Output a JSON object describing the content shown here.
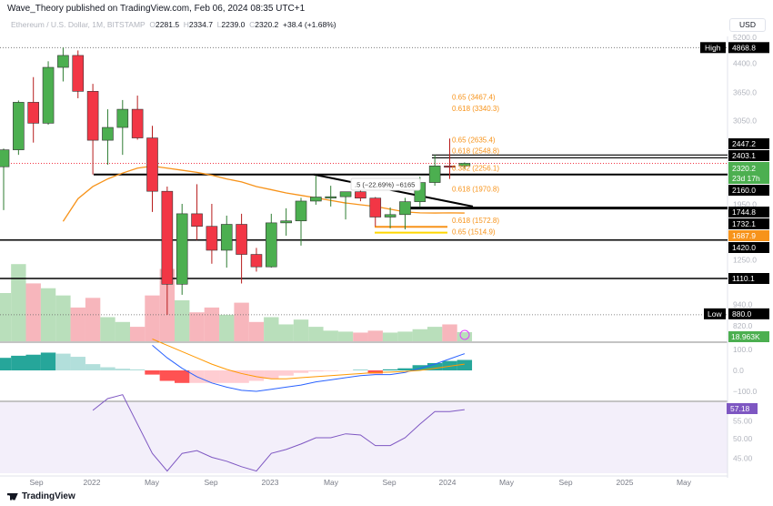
{
  "header": {
    "published": "Wave_Theory published on TradingView.com, Feb 06, 2024 08:35 UTC+1"
  },
  "legend": {
    "symbol": "Ethereum / U.S. Dollar, 1M, BITSTAMP",
    "o_label": "O",
    "open": "2281.5",
    "h_label": "H",
    "high": "2334.7",
    "l_label": "L",
    "low": "2239.0",
    "c_label": "C",
    "close": "2320.2",
    "change": "+38.4 (+1.68%)"
  },
  "currency": "USD",
  "colors": {
    "up": "#4caf50",
    "down": "#f23645",
    "ema": "#f7931a",
    "fib": "#f5b942",
    "rsi": "#7e57c2",
    "macd_line": "#2962ff",
    "signal": "#ff9800",
    "line": "#000000"
  },
  "price_axis": {
    "ticks": [
      "5200.0",
      "4400.0",
      "3650.0",
      "3050.0",
      "1950.0",
      "1250.0",
      "940.0",
      "820.0"
    ],
    "tick_values": [
      5200,
      4400,
      3650,
      3050,
      1950,
      1250,
      940,
      820
    ]
  },
  "price_labels": [
    {
      "text": "2447.2",
      "value": 2447.2,
      "bg": "#000000"
    },
    {
      "text": "2403.1",
      "value": 2403.1,
      "bg": "#000000"
    },
    {
      "text": "2160.0",
      "value": 2160.0,
      "bg": "#000000"
    },
    {
      "text": "1744.8",
      "value": 1744.8,
      "bg": "#000000"
    },
    {
      "text": "1732.1",
      "value": 1732.1,
      "bg": "#000000"
    },
    {
      "text": "1687.9",
      "value": 1687.9,
      "bg": "#f7931a"
    },
    {
      "text": "1420.0",
      "value": 1420.0,
      "bg": "#000000"
    },
    {
      "text": "1110.1",
      "value": 1110.1,
      "bg": "#000000"
    }
  ],
  "high_marker": {
    "label": "High",
    "value": "4868.8"
  },
  "low_marker": {
    "label": "Low",
    "value": "880.0"
  },
  "last_price": {
    "value": "2320.2",
    "countdown": "23d 17h"
  },
  "volume_label": "18.963K",
  "macd_axis": [
    "100.0",
    "0.0",
    "−100.0"
  ],
  "rsi_axis": [
    "55.00",
    "50.00",
    "45.00"
  ],
  "rsi_value": "57.18",
  "time_axis": [
    "Sep",
    "2022",
    "May",
    "Sep",
    "2023",
    "May",
    "Sep",
    "2024",
    "May",
    "Sep",
    "2025",
    "May"
  ],
  "fib_labels": [
    {
      "text": "0.65 (3467.4)",
      "value": 3467.4
    },
    {
      "text": "0.618 (3340.3)",
      "value": 3340.3
    },
    {
      "text": "0.65 (2635.4)",
      "value": 2635.4
    },
    {
      "text": "0.618 (2548.8)",
      "value": 2548.8
    },
    {
      "text": "0.382 (2256.1)",
      "value": 2256.1
    },
    {
      "text": "0.618 (1970.8)",
      "value": 1970.8
    },
    {
      "text": "0.618 (1572.8)",
      "value": 1572.8
    },
    {
      "text": "0.65 (1514.9)",
      "value": 1514.9
    }
  ],
  "measure_label": ".5 (−22.69%) −6165",
  "chart_data": {
    "type": "candlestick",
    "months": [
      "2021-07",
      "2021-08",
      "2021-09",
      "2021-10",
      "2021-11",
      "2021-12",
      "2022-01",
      "2022-02",
      "2022-03",
      "2022-04",
      "2022-05",
      "2022-06",
      "2022-07",
      "2022-08",
      "2022-09",
      "2022-10",
      "2022-11",
      "2022-12",
      "2023-01",
      "2023-02",
      "2023-03",
      "2023-04",
      "2023-05",
      "2023-06",
      "2023-07",
      "2023-08",
      "2023-09",
      "2023-10",
      "2023-11",
      "2023-12",
      "2024-01",
      "2024-02"
    ],
    "ohlc": [
      [
        2270,
        2550,
        1720,
        2530
      ],
      [
        2530,
        3470,
        2450,
        3430
      ],
      [
        3430,
        4030,
        2650,
        3000
      ],
      [
        3000,
        4460,
        2970,
        4290
      ],
      [
        4290,
        4868.8,
        3920,
        4630
      ],
      [
        4630,
        4780,
        3520,
        3680
      ],
      [
        3680,
        3860,
        2160,
        2690
      ],
      [
        2690,
        3280,
        2300,
        2920
      ],
      [
        2920,
        3480,
        2450,
        3280
      ],
      [
        3280,
        3580,
        2700,
        2730
      ],
      [
        2730,
        2950,
        1700,
        1940
      ],
      [
        1940,
        2000,
        880,
        1070
      ],
      [
        1070,
        1790,
        1000,
        1680
      ],
      [
        1680,
        2030,
        1420,
        1550
      ],
      [
        1550,
        1790,
        1220,
        1330
      ],
      [
        1330,
        1660,
        1190,
        1570
      ],
      [
        1570,
        1680,
        1075,
        1295
      ],
      [
        1295,
        1350,
        1160,
        1196
      ],
      [
        1196,
        1680,
        1190,
        1585
      ],
      [
        1585,
        1740,
        1460,
        1605
      ],
      [
        1605,
        1860,
        1370,
        1822
      ],
      [
        1822,
        2140,
        1780,
        1870
      ],
      [
        1870,
        2010,
        1760,
        1874
      ],
      [
        1874,
        1930,
        1620,
        1934
      ],
      [
        1934,
        2030,
        1820,
        1857
      ],
      [
        1857,
        1870,
        1550,
        1645
      ],
      [
        1645,
        1750,
        1530,
        1671
      ],
      [
        1671,
        1860,
        1520,
        1815
      ],
      [
        1815,
        2130,
        1760,
        2052
      ],
      [
        2052,
        2450,
        2010,
        2282
      ],
      [
        2282,
        2720,
        2100,
        2281.5
      ],
      [
        2281.5,
        2334.7,
        2239.0,
        2320.2
      ]
    ],
    "volume_k": [
      100,
      160,
      120,
      110,
      95,
      70,
      90,
      50,
      40,
      30,
      95,
      150,
      85,
      60,
      70,
      55,
      80,
      40,
      50,
      35,
      45,
      30,
      22,
      20,
      18,
      22,
      18,
      20,
      25,
      30,
      35,
      18.963
    ],
    "ema": [
      null,
      null,
      null,
      null,
      1600,
      1850,
      2000,
      2100,
      2180,
      2250,
      2280,
      2250,
      2220,
      2190,
      2150,
      2100,
      2060,
      2000,
      1960,
      1920,
      1890,
      1860,
      1830,
      1800,
      1780,
      1760,
      1730,
      1700,
      1690,
      1688,
      1690,
      1687.9
    ],
    "macd_hist": [
      60,
      70,
      75,
      85,
      80,
      65,
      30,
      15,
      8,
      5,
      -20,
      -50,
      -60,
      -60,
      -60,
      -60,
      -60,
      -50,
      -40,
      -25,
      -12,
      -5,
      -3,
      -1,
      2,
      -15,
      5,
      10,
      25,
      35,
      45,
      50
    ],
    "macd_line": [
      null,
      null,
      null,
      null,
      null,
      null,
      null,
      null,
      null,
      null,
      120,
      60,
      10,
      -30,
      -60,
      -80,
      -95,
      -100,
      -90,
      -80,
      -70,
      -55,
      -45,
      -35,
      -25,
      -20,
      -20,
      -10,
      10,
      30,
      55,
      80
    ],
    "signal_line": [
      null,
      null,
      null,
      null,
      null,
      null,
      null,
      null,
      null,
      null,
      150,
      120,
      90,
      60,
      30,
      5,
      -15,
      -30,
      -40,
      -40,
      -35,
      -30,
      -25,
      -20,
      -15,
      -10,
      -8,
      -5,
      0,
      10,
      20,
      30
    ],
    "rsi": [
      null,
      null,
      null,
      null,
      null,
      null,
      57,
      60,
      61,
      null,
      46,
      41.5,
      46,
      46.7,
      45,
      44,
      42.6,
      41.5,
      46,
      47,
      48.4,
      50,
      50,
      51,
      50.7,
      48,
      48,
      50,
      53.5,
      56.7,
      56.7,
      57.18
    ]
  }
}
